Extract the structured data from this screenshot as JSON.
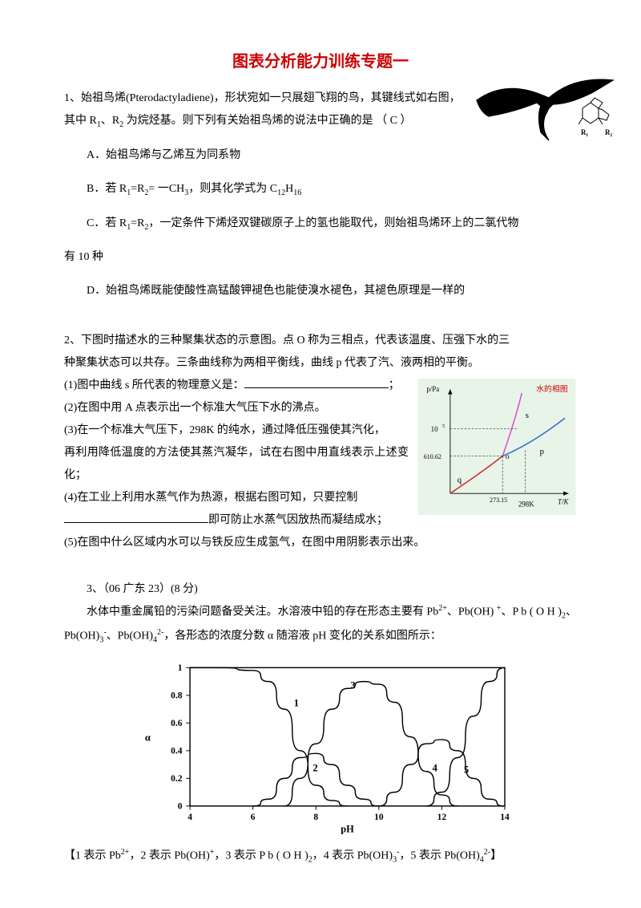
{
  "title": "图表分析能力训练专题一",
  "q1": {
    "stem1": "1、始祖鸟烯(Pterodactyladiene)，形状宛如一只展翅飞翔的鸟，其键线式如右图，",
    "stem2_a": "其中 R",
    "stem2_b": "、R",
    "stem2_c": " 为烷烃基。则下列有关始祖鸟烯的说法中正确的是  （  C       ）",
    "optA": "A．始祖鸟烯与乙烯互为同系物",
    "optB_a": "B．若 R",
    "optB_b": "=R",
    "optB_c": "= 一CH",
    "optB_d": "，则其化学式为 C",
    "optB_e": "H",
    "optC_a": "C．若 R",
    "optC_b": "=R",
    "optC_c": "，一定条件下烯烃双键碳原子上的氢也能取代，则始祖鸟烯环上的二氯代物",
    "optC2": "有 10 种",
    "optD": "D．始祖鸟烯既能使酸性高锰酸钾褪色也能使溴水褪色，其褪色原理是一样的"
  },
  "q2": {
    "stem1": "2、下图时描述水的三种聚集状态的示意图。点 O 称为三相点，代表该温度、压强下水的三",
    "stem2": "种聚集状态可以共存。三条曲线称为两相平衡线，曲线 p 代表了汽、液两相的平衡。",
    "p1": "(1)图中曲线 s 所代表的物理意义是：",
    "p1_end": "；",
    "p2": "(2)在图中用 A 点表示出一个标准大气压下水的沸点。",
    "p3": "(3)在一个标准大气压下，298K 的纯水，通过降低压强使其汽化，",
    "p3b": "再利用降低温度的方法使其蒸汽凝华，试在右图中用直线表示上述变化；",
    "p4": "(4)在工业上利用水蒸气作为热源，根据右图可知，只要控制",
    "p4b": "即可防止水蒸气因放热而凝结成水；",
    "p5": "(5)在图中什么区域内水可以与铁反应生成氢气，在图中用阴影表示出来。",
    "phase_diagram": {
      "title": "水的相图",
      "title_color": "#cc0000",
      "bg_color": "#e8f4e8",
      "axis_color": "#000000",
      "curve_s_color": "#d957c8",
      "curve_p_color": "#3a6fd8",
      "curve_q_color": "#cc3333",
      "y_label": "p/Pa",
      "x_label": "T/K",
      "xtick1": "273.15",
      "xtick2": "298K",
      "ytick1": "10",
      "ytick1_exp": "5",
      "ytick2": "610.62",
      "label_s": "s",
      "label_p": "p",
      "label_q": "q",
      "label_o": "o"
    }
  },
  "q3": {
    "heading": "3、（06 广东 23）(8 分)",
    "stem1_a": "水体中重金属铅的污染问题备受关注。水溶液中铅的存在形态主要有 Pb",
    "stem1_b": "、Pb(OH)",
    "stem1_c": "、P b ( O H )",
    "stem1_d": "、Pb(OH)",
    "stem1_e": "、Pb(OH)",
    "stem1_f": "，各形态的浓度分数 α 随溶液 pH 变化的关系如图所示：",
    "legend_a": "【1 表示 Pb",
    "legend_b": "，2 表示 Pb(OH)",
    "legend_c": "，3 表示 P b ( O H )",
    "legend_d": "，4 表示 Pb(OH)",
    "legend_e": "，5 表示 Pb(OH)",
    "legend_f": "】",
    "chart": {
      "type": "line",
      "x_label": "pH",
      "y_label": "α",
      "xlim": [
        4,
        14
      ],
      "ylim": [
        0,
        1
      ],
      "xticks": [
        4,
        6,
        8,
        10,
        12,
        14
      ],
      "yticks": [
        0,
        0.2,
        0.4,
        0.6,
        0.8,
        1
      ],
      "line_color": "#000000",
      "line_width": 1.5,
      "series_labels": [
        "1",
        "2",
        "3",
        "4",
        "5"
      ],
      "series": {
        "1": [
          [
            4,
            1.0
          ],
          [
            5,
            1.0
          ],
          [
            6,
            0.98
          ],
          [
            6.5,
            0.9
          ],
          [
            7,
            0.7
          ],
          [
            7.5,
            0.4
          ],
          [
            8,
            0.15
          ],
          [
            8.5,
            0.04
          ],
          [
            9,
            0.0
          ]
        ],
        "2": [
          [
            6,
            0.0
          ],
          [
            6.5,
            0.05
          ],
          [
            7,
            0.2
          ],
          [
            7.5,
            0.35
          ],
          [
            8,
            0.38
          ],
          [
            8.5,
            0.3
          ],
          [
            9,
            0.15
          ],
          [
            9.5,
            0.05
          ],
          [
            10,
            0.0
          ]
        ],
        "3": [
          [
            7,
            0.0
          ],
          [
            7.5,
            0.2
          ],
          [
            8,
            0.45
          ],
          [
            8.5,
            0.7
          ],
          [
            9,
            0.85
          ],
          [
            9.5,
            0.9
          ],
          [
            10,
            0.88
          ],
          [
            10.5,
            0.75
          ],
          [
            11,
            0.5
          ],
          [
            11.5,
            0.25
          ],
          [
            12,
            0.08
          ],
          [
            12.5,
            0.0
          ]
        ],
        "4": [
          [
            10,
            0.0
          ],
          [
            10.5,
            0.1
          ],
          [
            11,
            0.3
          ],
          [
            11.5,
            0.45
          ],
          [
            12,
            0.48
          ],
          [
            12.5,
            0.4
          ],
          [
            13,
            0.2
          ],
          [
            13.5,
            0.05
          ],
          [
            14,
            0.0
          ]
        ],
        "5": [
          [
            11.5,
            0.0
          ],
          [
            12,
            0.1
          ],
          [
            12.5,
            0.35
          ],
          [
            13,
            0.65
          ],
          [
            13.5,
            0.9
          ],
          [
            14,
            1.0
          ]
        ]
      }
    }
  }
}
